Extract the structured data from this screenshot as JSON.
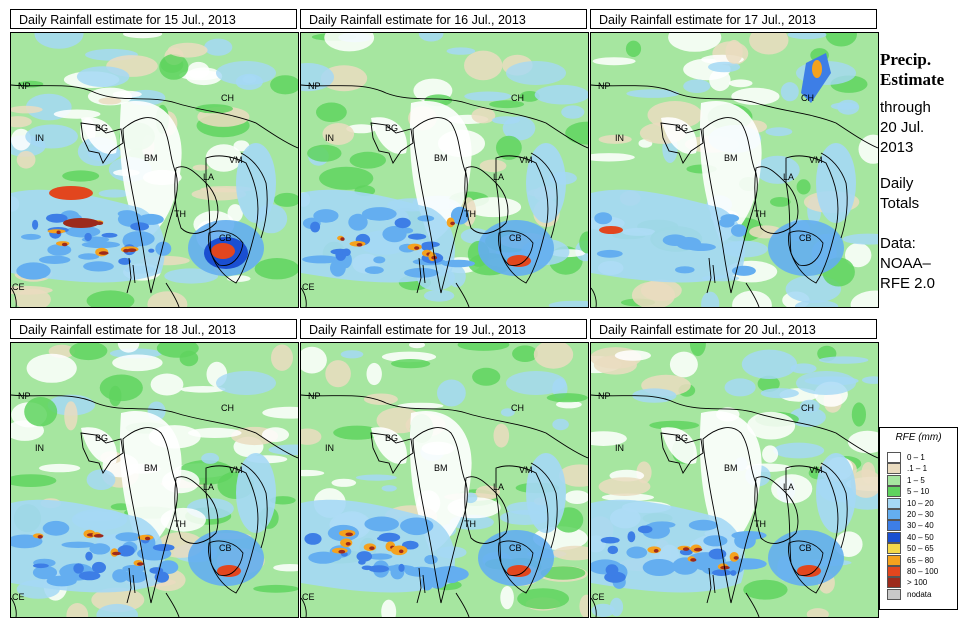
{
  "panels": [
    {
      "title": "Daily Rainfall estimate for  15 Jul., 2013",
      "intensity": 3
    },
    {
      "title": "Daily Rainfall estimate for  16 Jul., 2013",
      "intensity": 2
    },
    {
      "title": "Daily Rainfall estimate for  17 Jul., 2013",
      "intensity": 1
    },
    {
      "title": "Daily Rainfall estimate for  18 Jul., 2013",
      "intensity": 2
    },
    {
      "title": "Daily Rainfall estimate for  19 Jul., 2013",
      "intensity": 2
    },
    {
      "title": "Daily Rainfall estimate for  20 Jul., 2013",
      "intensity": 2
    }
  ],
  "country_labels": [
    "NP",
    "CH",
    "IN",
    "BG",
    "BM",
    "VM",
    "LA",
    "TH",
    "CB",
    "CE"
  ],
  "sidebar": {
    "title_line1": "Precip.",
    "title_line2": "Estimate",
    "through": "through",
    "date_line1": "20 Jul.",
    "date_line2": "2013",
    "daily_line1": "Daily",
    "daily_line2": "Totals",
    "data_line1": "Data:",
    "data_line2": "NOAA–",
    "data_line3": "RFE 2.0"
  },
  "legend": {
    "title": "RFE (mm)",
    "items": [
      {
        "label": "0 – 1",
        "color": "#ffffff"
      },
      {
        "label": ".1 – 1",
        "color": "#eadcc0"
      },
      {
        "label": "1 – 5",
        "color": "#a6e6a0"
      },
      {
        "label": "5 – 10",
        "color": "#5fd35f"
      },
      {
        "label": "10 – 20",
        "color": "#a5d8f5"
      },
      {
        "label": "20 – 30",
        "color": "#64aef0"
      },
      {
        "label": "30 – 40",
        "color": "#3d7ee6"
      },
      {
        "label": "40 – 50",
        "color": "#1a4fd1"
      },
      {
        "label": "50 – 65",
        "color": "#f5d94a"
      },
      {
        "label": "65 – 80",
        "color": "#f5a21e"
      },
      {
        "label": "80 – 100",
        "color": "#e2461e"
      },
      {
        "label": "> 100",
        "color": "#9c2a1c"
      },
      {
        "label": "nodata",
        "color": "#c8c8c8"
      }
    ]
  }
}
